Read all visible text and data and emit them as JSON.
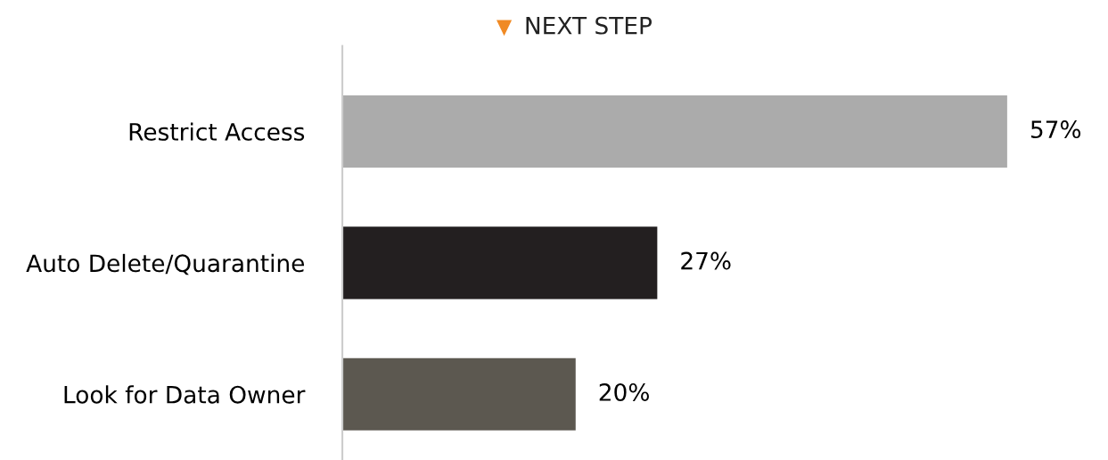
{
  "chart_data": {
    "type": "bar",
    "orientation": "horizontal",
    "title": "NEXT STEP",
    "categories": [
      "Restrict Access",
      "Auto Delete/Quarantine",
      "Look for Data Owner"
    ],
    "values": [
      57,
      27,
      20
    ],
    "colors": [
      "#ababab",
      "#231f20",
      "#5c5850"
    ],
    "data_labels": true,
    "value_labels": [
      "57%",
      "27%",
      "20%"
    ],
    "grid": false,
    "legend": false
  }
}
